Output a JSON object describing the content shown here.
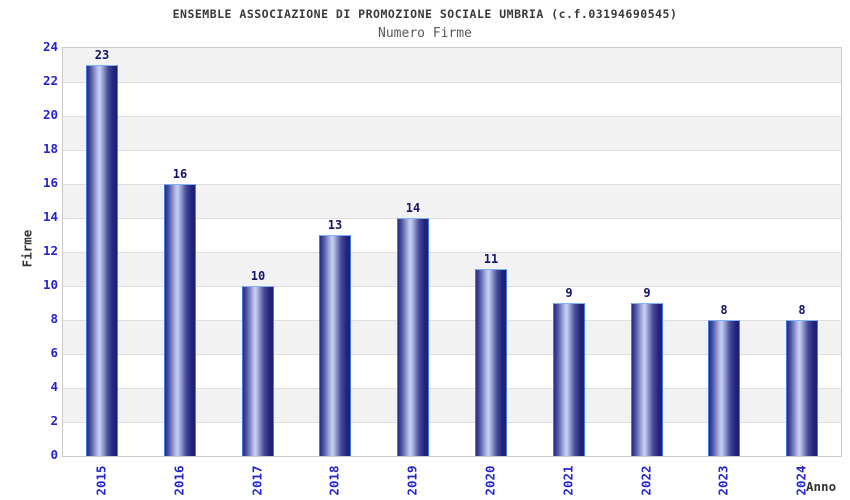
{
  "chart_data": {
    "type": "bar",
    "title": "ENSEMBLE ASSOCIAZIONE DI PROMOZIONE SOCIALE UMBRIA (c.f.03194690545)",
    "subtitle": "Numero Firme",
    "xlabel": "Anno",
    "ylabel": "Firme",
    "categories": [
      "2015",
      "2016",
      "2017",
      "2018",
      "2019",
      "2020",
      "2021",
      "2022",
      "2023",
      "2024"
    ],
    "values": [
      23,
      16,
      10,
      13,
      14,
      11,
      9,
      9,
      8,
      8
    ],
    "ylim": [
      0,
      24
    ],
    "ytick_step": 2,
    "grid": true,
    "legend_position": "none",
    "plot_background": "alternating-horizontal-bands"
  },
  "colors": {
    "title_text": "#3a3a3a",
    "subtitle_text": "#5a5a5a",
    "axis_tick_label": "#2424cf",
    "bar_value_label": "#14146e",
    "axis_title_text": "#333333",
    "band_gray": "#f2f2f2",
    "band_white": "#ffffff",
    "grid_line": "#dedede",
    "plot_border": "#cbcbcb",
    "bar_border": "#3f7de0",
    "bar_border_top": "#7fb3f2",
    "bar_gradient": [
      "#2a2a84",
      "#4d53a2",
      "#b3bce6",
      "#c9d0f0",
      "#9ba4d6",
      "#474b9a",
      "#24247c",
      "#1e1e70"
    ]
  }
}
